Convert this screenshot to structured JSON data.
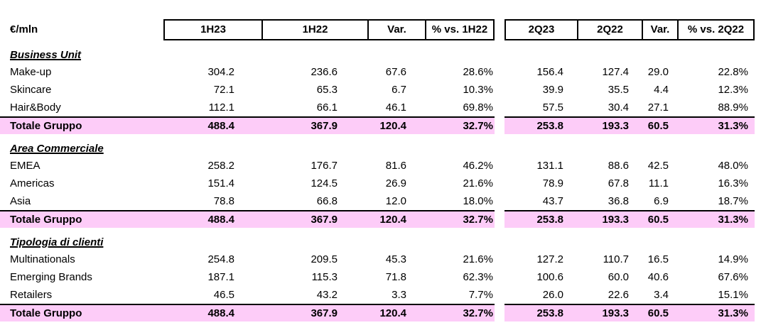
{
  "meta": {
    "unit_label": "€/mln"
  },
  "columns": [
    "1H23",
    "1H22",
    "Var.",
    "% vs. 1H22",
    "2Q23",
    "2Q22",
    "Var.",
    "% vs. 2Q22"
  ],
  "sections": [
    {
      "title": "Business Unit",
      "rows": [
        {
          "label": "Make-up",
          "values": [
            "304.2",
            "236.6",
            "67.6",
            "28.6%",
            "156.4",
            "127.4",
            "29.0",
            "22.8%"
          ]
        },
        {
          "label": "Skincare",
          "values": [
            "72.1",
            "65.3",
            "6.7",
            "10.3%",
            "39.9",
            "35.5",
            "4.4",
            "12.3%"
          ]
        },
        {
          "label": "Hair&Body",
          "values": [
            "112.1",
            "66.1",
            "46.1",
            "69.8%",
            "57.5",
            "30.4",
            "27.1",
            "88.9%"
          ]
        }
      ],
      "total": {
        "label": "Totale Gruppo",
        "values": [
          "488.4",
          "367.9",
          "120.4",
          "32.7%",
          "253.8",
          "193.3",
          "60.5",
          "31.3%"
        ]
      }
    },
    {
      "title": "Area Commerciale",
      "rows": [
        {
          "label": "EMEA",
          "values": [
            "258.2",
            "176.7",
            "81.6",
            "46.2%",
            "131.1",
            "88.6",
            "42.5",
            "48.0%"
          ]
        },
        {
          "label": "Americas",
          "values": [
            "151.4",
            "124.5",
            "26.9",
            "21.6%",
            "78.9",
            "67.8",
            "11.1",
            "16.3%"
          ]
        },
        {
          "label": "Asia",
          "values": [
            "78.8",
            "66.8",
            "12.0",
            "18.0%",
            "43.7",
            "36.8",
            "6.9",
            "18.7%"
          ]
        }
      ],
      "total": {
        "label": "Totale Gruppo",
        "values": [
          "488.4",
          "367.9",
          "120.4",
          "32.7%",
          "253.8",
          "193.3",
          "60.5",
          "31.3%"
        ]
      }
    },
    {
      "title": "Tipologia di clienti",
      "rows": [
        {
          "label": "Multinationals",
          "values": [
            "254.8",
            "209.5",
            "45.3",
            "21.6%",
            "127.2",
            "110.7",
            "16.5",
            "14.9%"
          ]
        },
        {
          "label": "Emerging Brands",
          "values": [
            "187.1",
            "115.3",
            "71.8",
            "62.3%",
            "100.6",
            "60.0",
            "40.6",
            "67.6%"
          ]
        },
        {
          "label": "Retailers",
          "values": [
            "46.5",
            "43.2",
            "3.3",
            "7.7%",
            "26.0",
            "22.6",
            "3.4",
            "15.1%"
          ]
        }
      ],
      "total": {
        "label": "Totale Gruppo",
        "values": [
          "488.4",
          "367.9",
          "120.4",
          "32.7%",
          "253.8",
          "193.3",
          "60.5",
          "31.3%"
        ]
      }
    }
  ],
  "colors": {
    "highlight": "#FDCCF8",
    "line": "#000000"
  }
}
